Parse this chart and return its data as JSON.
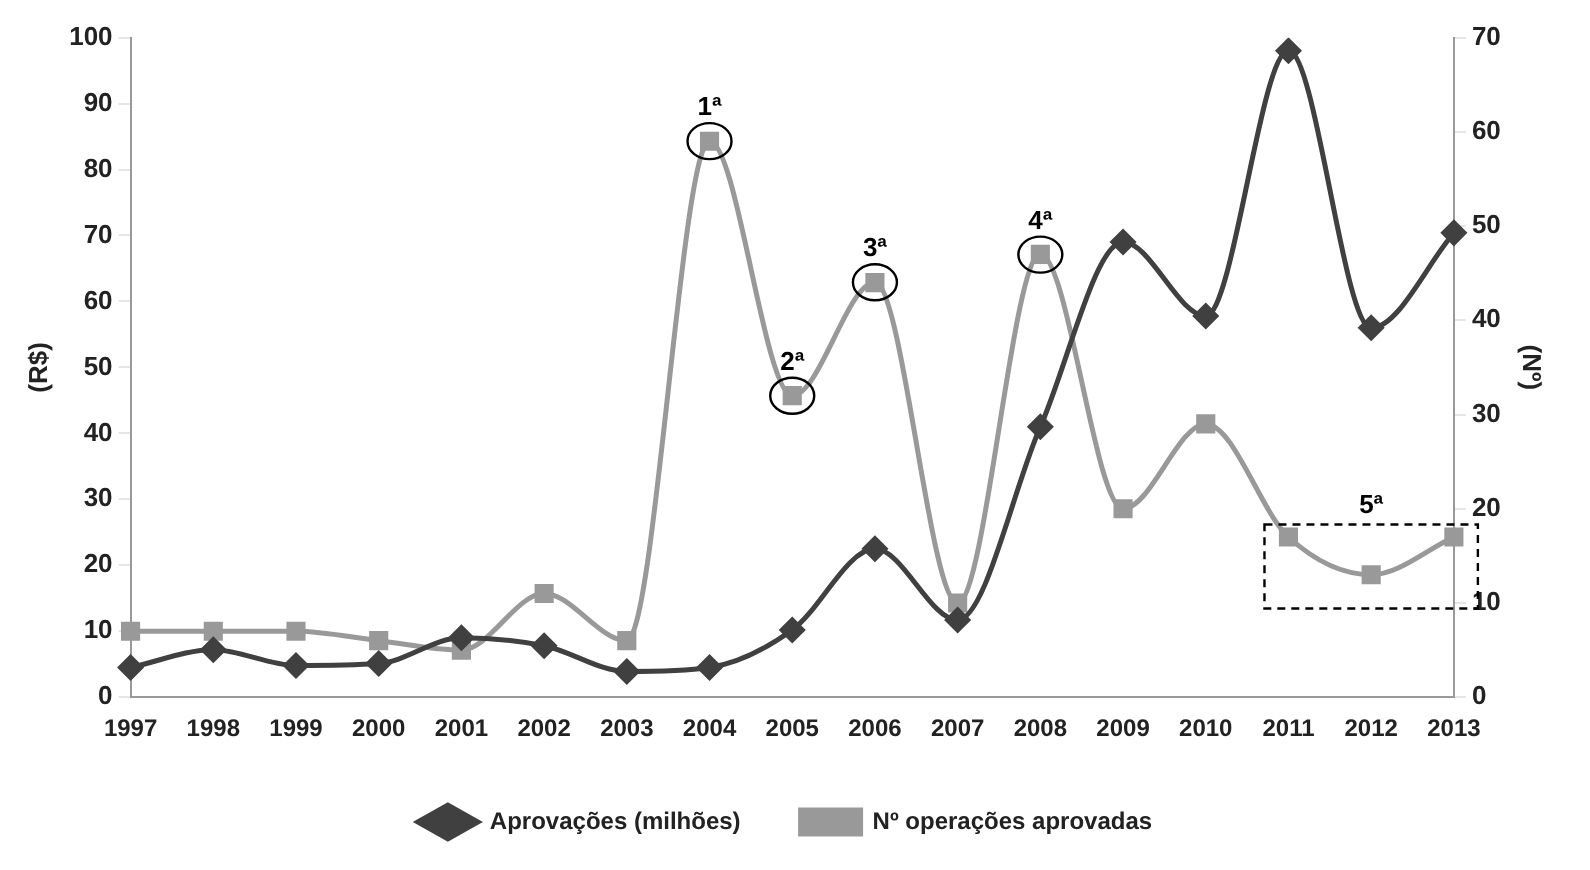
{
  "chart_data": {
    "type": "line",
    "ylabel": "(R$)",
    "y2label": "(Nº)",
    "categories": [
      "1997",
      "1998",
      "1999",
      "2000",
      "2001",
      "2002",
      "2003",
      "2004",
      "2005",
      "2006",
      "2007",
      "2008",
      "2009",
      "2010",
      "2011",
      "2012",
      "2013"
    ],
    "series": [
      {
        "name": "Aprovações (milhões)",
        "color": "#404040",
        "marker": "diamond",
        "values": [
          4.5,
          7.2,
          4.8,
          5.1,
          9,
          7.8,
          3.9,
          4.5,
          10.2,
          22.5,
          11.7,
          41,
          69,
          57.8,
          98,
          56,
          70.4
        ]
      },
      {
        "name": "Nº operações aprovadas",
        "color": "#999999",
        "marker": "square",
        "axis": "y2",
        "values": [
          7,
          7,
          7,
          6,
          5,
          11,
          6,
          59,
          32,
          44,
          10,
          47,
          20,
          29,
          17,
          13,
          17
        ]
      }
    ],
    "ylim": [
      0,
      100
    ],
    "yticks": [
      0,
      10,
      20,
      30,
      40,
      50,
      60,
      70,
      80,
      90,
      100
    ],
    "y2lim": [
      0,
      70
    ],
    "y2ticks": [
      0,
      10,
      20,
      30,
      40,
      50,
      60,
      70
    ],
    "grid": false,
    "legend": "bottom",
    "annotations": [
      {
        "text": "1ª",
        "x": "2004",
        "y": 84.3
      },
      {
        "text": "2ª",
        "x": "2005",
        "y": 45.7
      },
      {
        "text": "3ª",
        "x": "2006",
        "y": 62.9
      },
      {
        "text": "4ª",
        "x": "2008",
        "y": 67.1
      },
      {
        "text": "5ª",
        "x": "2012",
        "y": 18.6
      }
    ]
  }
}
